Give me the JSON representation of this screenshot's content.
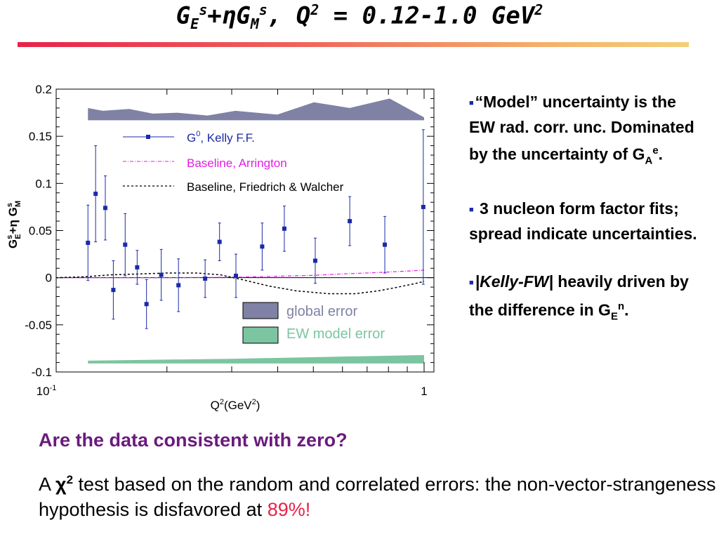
{
  "title": {
    "main": "G",
    "sub_e": "E",
    "sup1": "s",
    "plus": "+",
    "eta": "η",
    "g2": "G",
    "sub_m": "M",
    "sup2": "s",
    "rest": ", Q",
    "sup3": "2",
    "tail": " = 0.12-1.0 GeV",
    "sup4": "2"
  },
  "colors": {
    "accent_rule": "#e8224a",
    "band_global": "#7f82a4",
    "band_ew": "#7cc5a1",
    "data": "#1c2aa8",
    "baseline_arrington": "#e31ee3",
    "question": "#6b1a7d",
    "highlight": "#e8224a"
  },
  "chart_data": {
    "type": "scatter",
    "x_scale": "log",
    "xlim": [
      0.1,
      1.0
    ],
    "ylim": [
      -0.1,
      0.2
    ],
    "xlabel": {
      "q": "Q",
      "q_sup": "2",
      "unit": "(GeV",
      "unit_sup": "2",
      "close": ")"
    },
    "ylabel": {
      "g1": "G",
      "g1_sup": "s",
      "g1_sub": "E",
      "mid": "+η G",
      "g2_sup": "s",
      "g2_sub": "M"
    },
    "y_ticks": [
      "0.2",
      "0.15",
      "0.1",
      "0.05",
      "0",
      "-0.05",
      "-0.1"
    ],
    "x_tick_labels": {
      "left_base": "10",
      "left_exp": "-1",
      "right": "1"
    },
    "legend_top": [
      {
        "name_base": "G",
        "name_sup": "0",
        "name_rest": ", Kelly F.F.",
        "color": "#1c2aa8",
        "style": "marker-line"
      },
      {
        "name": "Baseline, Arrington",
        "color": "#e31ee3",
        "style": "dash-dot"
      },
      {
        "name": "Baseline, Friedrich & Walcher",
        "color": "#000000",
        "style": "dashed"
      }
    ],
    "legend_bottom": [
      {
        "name": "global error",
        "fill": "#7f82a4"
      },
      {
        "name": "EW model error",
        "fill": "#7cc5a1"
      }
    ],
    "points": [
      {
        "x": 0.122,
        "y": 0.037,
        "err": 0.04
      },
      {
        "x": 0.128,
        "y": 0.089,
        "err": 0.051
      },
      {
        "x": 0.136,
        "y": 0.074,
        "err": 0.034
      },
      {
        "x": 0.143,
        "y": -0.013,
        "err": 0.031
      },
      {
        "x": 0.154,
        "y": 0.035,
        "err": 0.033
      },
      {
        "x": 0.166,
        "y": 0.011,
        "err": 0.018
      },
      {
        "x": 0.176,
        "y": -0.028,
        "err": 0.026
      },
      {
        "x": 0.193,
        "y": 0.003,
        "err": 0.027
      },
      {
        "x": 0.215,
        "y": -0.008,
        "err": 0.028
      },
      {
        "x": 0.254,
        "y": -0.001,
        "err": 0.02
      },
      {
        "x": 0.278,
        "y": 0.038,
        "err": 0.02
      },
      {
        "x": 0.308,
        "y": 0.002,
        "err": 0.023
      },
      {
        "x": 0.363,
        "y": 0.033,
        "err": 0.025
      },
      {
        "x": 0.417,
        "y": 0.052,
        "err": 0.024
      },
      {
        "x": 0.506,
        "y": 0.018,
        "err": 0.024
      },
      {
        "x": 0.628,
        "y": 0.06,
        "err": 0.026
      },
      {
        "x": 0.782,
        "y": 0.035,
        "err": 0.03
      },
      {
        "x": 0.995,
        "y": 0.075,
        "err": 0.082
      }
    ],
    "global_error_band": [
      {
        "x": 0.122,
        "lo": 0.167,
        "hi": 0.18
      },
      {
        "x": 0.134,
        "lo": 0.167,
        "hi": 0.177
      },
      {
        "x": 0.158,
        "lo": 0.167,
        "hi": 0.179
      },
      {
        "x": 0.183,
        "lo": 0.167,
        "hi": 0.174
      },
      {
        "x": 0.213,
        "lo": 0.167,
        "hi": 0.175
      },
      {
        "x": 0.258,
        "lo": 0.167,
        "hi": 0.172
      },
      {
        "x": 0.307,
        "lo": 0.167,
        "hi": 0.177
      },
      {
        "x": 0.399,
        "lo": 0.167,
        "hi": 0.173
      },
      {
        "x": 0.502,
        "lo": 0.167,
        "hi": 0.186
      },
      {
        "x": 0.628,
        "lo": 0.167,
        "hi": 0.18
      },
      {
        "x": 0.806,
        "lo": 0.167,
        "hi": 0.19
      },
      {
        "x": 1.0,
        "lo": 0.167,
        "hi": 0.17
      }
    ],
    "ew_error_band": [
      {
        "x": 0.122,
        "lo": -0.091,
        "hi": -0.088
      },
      {
        "x": 0.3,
        "lo": -0.091,
        "hi": -0.086
      },
      {
        "x": 1.0,
        "lo": -0.091,
        "hi": -0.082
      }
    ],
    "baseline_arrington": [
      {
        "x": 0.1,
        "y": 0.0
      },
      {
        "x": 0.2,
        "y": 0.0
      },
      {
        "x": 0.3,
        "y": 0.0005
      },
      {
        "x": 0.4,
        "y": 0.0015
      },
      {
        "x": 0.5,
        "y": 0.0025
      },
      {
        "x": 0.6,
        "y": 0.004
      },
      {
        "x": 0.7,
        "y": 0.005
      },
      {
        "x": 0.8,
        "y": 0.006
      },
      {
        "x": 0.9,
        "y": 0.007
      },
      {
        "x": 1.0,
        "y": 0.008
      }
    ],
    "baseline_friedrich_walcher": [
      {
        "x": 0.1,
        "y": 0.0
      },
      {
        "x": 0.12,
        "y": 0.001
      },
      {
        "x": 0.14,
        "y": 0.003
      },
      {
        "x": 0.17,
        "y": 0.004
      },
      {
        "x": 0.2,
        "y": 0.005
      },
      {
        "x": 0.24,
        "y": 0.005
      },
      {
        "x": 0.28,
        "y": 0.003
      },
      {
        "x": 0.32,
        "y": -0.002
      },
      {
        "x": 0.38,
        "y": -0.009
      },
      {
        "x": 0.45,
        "y": -0.014
      },
      {
        "x": 0.55,
        "y": -0.017
      },
      {
        "x": 0.65,
        "y": -0.017
      },
      {
        "x": 0.75,
        "y": -0.014
      },
      {
        "x": 0.85,
        "y": -0.01
      },
      {
        "x": 0.95,
        "y": -0.006
      },
      {
        "x": 1.0,
        "y": -0.004
      }
    ]
  },
  "notes": [
    {
      "pre": "“Model” uncertainty is the EW rad. corr. unc. Dominated by the uncertainty of G",
      "sub": "A",
      "sup": "e",
      "post": "."
    },
    {
      "text": " 3 nucleon form factor fits; spread indicate uncertainties."
    },
    {
      "italic": "|Kelly-FW|",
      "post": " heavily driven by the difference in G",
      "sub": "E",
      "sup": "n",
      "end": "."
    }
  ],
  "question": "Are the data consistent with zero?",
  "conclusion": {
    "a": "A ",
    "chi": "χ",
    "chi_sup": "2",
    "text": " test based on the random and correlated errors: the non-vector-strangeness hypothesis is disfavored at ",
    "highlight": "89%!"
  }
}
